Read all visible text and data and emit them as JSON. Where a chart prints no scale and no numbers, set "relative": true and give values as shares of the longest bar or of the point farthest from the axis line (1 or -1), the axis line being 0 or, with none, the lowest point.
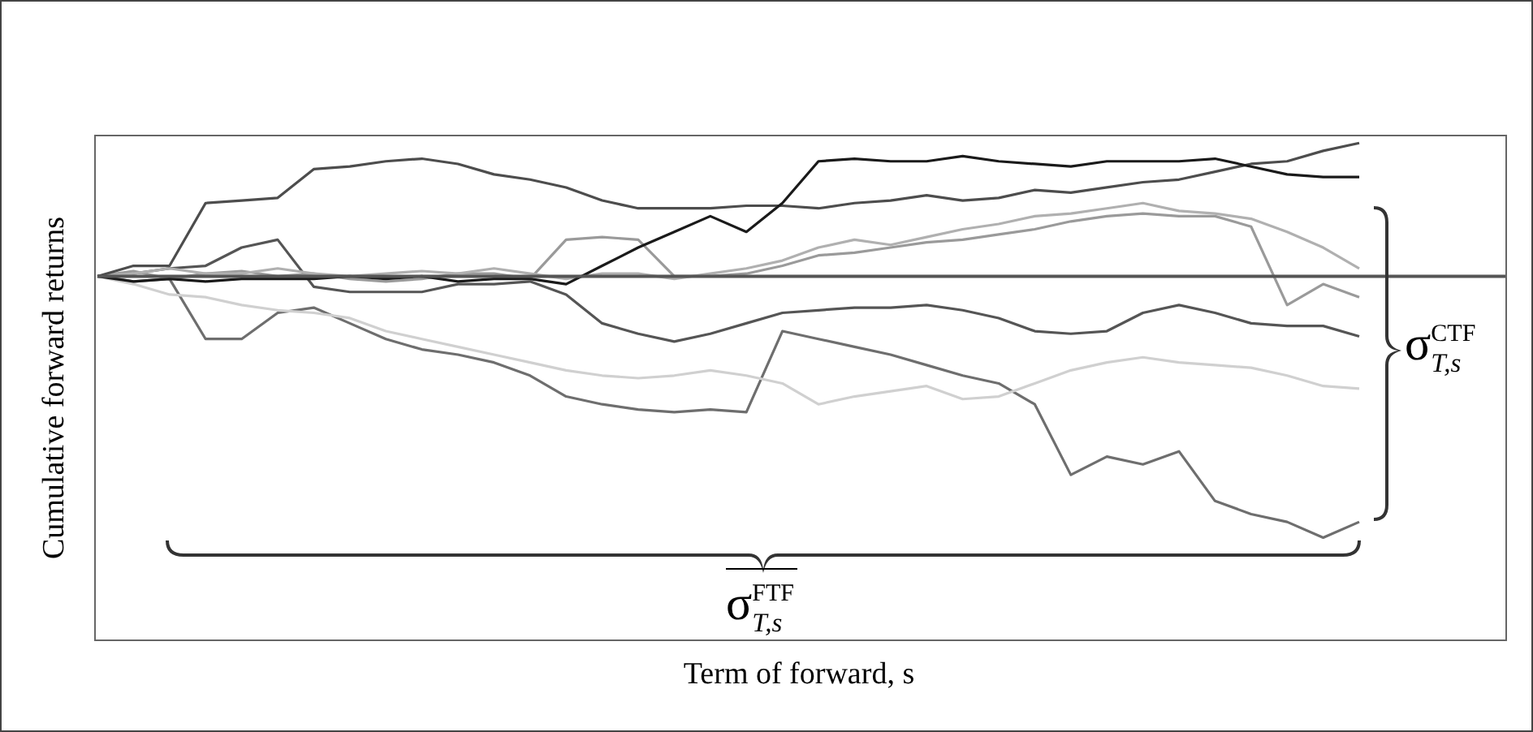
{
  "chart_data": {
    "type": "line",
    "relative": true,
    "xlabel": "Term of forward, s",
    "ylabel": "Cumulative forward returns",
    "annotations": [
      "σ$_{T,s}$$^{CTF}$",
      "σ$_{T,s}$$^{FTF}$"
    ],
    "legend": false,
    "categories": [
      null,
      null,
      null,
      null,
      null,
      null,
      null,
      null,
      null,
      null,
      null,
      null,
      null,
      null,
      null,
      null,
      null,
      null,
      null,
      null,
      null,
      null,
      null,
      null,
      null,
      null,
      null,
      null,
      null,
      null,
      null,
      null,
      null,
      null,
      null,
      null
    ],
    "series": [
      {
        "color": "#1a1a1a",
        "values": [
          0,
          -0.02,
          -0.01,
          -0.02,
          -0.01,
          -0.01,
          -0.01,
          0,
          -0.01,
          0,
          -0.02,
          -0.01,
          -0.01,
          -0.03,
          0.04,
          0.11,
          0.17,
          0.23,
          0.17,
          0.28,
          0.44,
          0.45,
          0.44,
          0.44,
          0.46,
          0.44,
          0.43,
          0.42,
          0.44,
          0.44,
          0.44,
          0.45,
          0.42,
          0.39,
          0.38,
          0.38
        ]
      },
      {
        "color": "#4d4d4d",
        "values": [
          0,
          0.04,
          0.04,
          0.28,
          0.29,
          0.3,
          0.41,
          0.42,
          0.44,
          0.45,
          0.43,
          0.39,
          0.37,
          0.34,
          0.29,
          0.26,
          0.26,
          0.26,
          0.27,
          0.27,
          0.26,
          0.28,
          0.29,
          0.31,
          0.29,
          0.3,
          0.33,
          0.32,
          0.34,
          0.36,
          0.37,
          0.4,
          0.43,
          0.44,
          0.48,
          0.51
        ]
      },
      {
        "color": "#b0b0b0",
        "values": [
          0,
          0.01,
          0.03,
          0.01,
          0.01,
          0.03,
          0.01,
          0,
          0.01,
          0.02,
          0.01,
          0.03,
          0.01,
          -0.01,
          0.01,
          0.01,
          -0.01,
          0.01,
          0.03,
          0.06,
          0.11,
          0.14,
          0.12,
          0.15,
          0.18,
          0.2,
          0.23,
          0.24,
          0.26,
          0.28,
          0.25,
          0.24,
          0.22,
          0.17,
          0.11,
          0.03
        ]
      },
      {
        "color": "#9a9a9a",
        "values": [
          0,
          0.02,
          -0.01,
          0.01,
          0.02,
          0,
          0.01,
          -0.01,
          -0.02,
          -0.01,
          0.01,
          0.01,
          -0.01,
          0.14,
          0.15,
          0.14,
          0,
          0,
          0.01,
          0.04,
          0.08,
          0.09,
          0.11,
          0.13,
          0.14,
          0.16,
          0.18,
          0.21,
          0.23,
          0.24,
          0.23,
          0.23,
          0.19,
          -0.11,
          -0.03,
          -0.08
        ]
      },
      {
        "color": "#555555",
        "values": [
          0,
          0.01,
          0.03,
          0.04,
          0.11,
          0.14,
          -0.04,
          -0.06,
          -0.06,
          -0.06,
          -0.03,
          -0.03,
          -0.02,
          -0.07,
          -0.18,
          -0.22,
          -0.25,
          -0.22,
          -0.18,
          -0.14,
          -0.13,
          -0.12,
          -0.12,
          -0.11,
          -0.13,
          -0.16,
          -0.21,
          -0.22,
          -0.21,
          -0.14,
          -0.11,
          -0.14,
          -0.18,
          -0.19,
          -0.19,
          -0.23
        ]
      },
      {
        "color": "#d0d0d0",
        "values": [
          0,
          -0.03,
          -0.07,
          -0.08,
          -0.11,
          -0.13,
          -0.14,
          -0.16,
          -0.21,
          -0.24,
          -0.27,
          -0.3,
          -0.33,
          -0.36,
          -0.38,
          -0.39,
          -0.38,
          -0.36,
          -0.38,
          -0.41,
          -0.49,
          -0.46,
          -0.44,
          -0.42,
          -0.47,
          -0.46,
          -0.41,
          -0.36,
          -0.33,
          -0.31,
          -0.33,
          -0.34,
          -0.35,
          -0.38,
          -0.42,
          -0.43
        ]
      },
      {
        "color": "#6e6e6e",
        "values": [
          0,
          -0.02,
          -0.01,
          -0.24,
          -0.24,
          -0.14,
          -0.12,
          -0.18,
          -0.24,
          -0.28,
          -0.3,
          -0.33,
          -0.38,
          -0.46,
          -0.49,
          -0.51,
          -0.52,
          -0.51,
          -0.52,
          -0.21,
          -0.24,
          -0.27,
          -0.3,
          -0.34,
          -0.38,
          -0.41,
          -0.49,
          -0.76,
          -0.69,
          -0.72,
          -0.67,
          -0.86,
          -0.91,
          -0.94,
          -1,
          -0.94
        ]
      }
    ]
  }
}
